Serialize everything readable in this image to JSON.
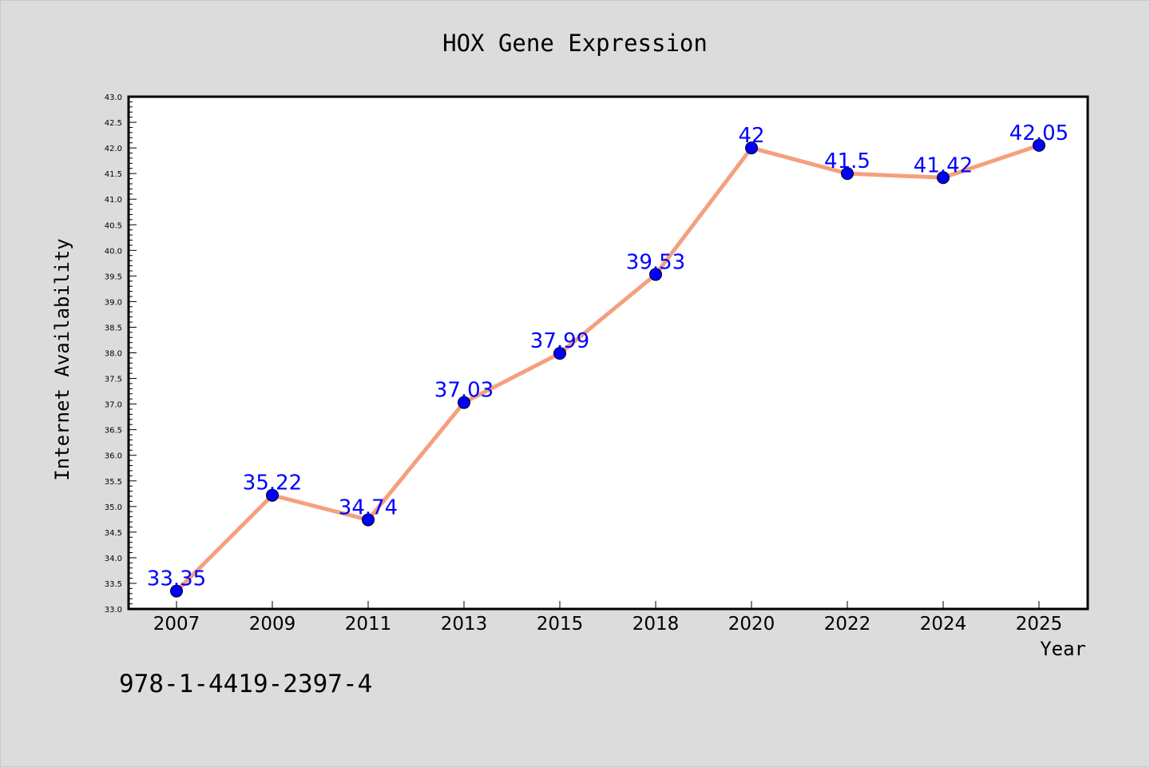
{
  "chart_data": {
    "type": "line",
    "title": "HOX Gene Expression",
    "xlabel": "Year",
    "ylabel": "Internet Availability",
    "categories": [
      "2007",
      "2009",
      "2011",
      "2013",
      "2015",
      "2018",
      "2020",
      "2022",
      "2024",
      "2025"
    ],
    "series": [
      {
        "values": [
          33.35,
          35.22,
          34.74,
          37.03,
          37.99,
          39.53,
          42,
          41.5,
          41.42,
          42.05
        ],
        "line_color": "#f4a07e",
        "marker_color": "#0000ff"
      }
    ],
    "data_labels": [
      "33.35",
      "35.22",
      "34.74",
      "37.03",
      "37.99",
      "39.53",
      "42",
      "41.5",
      "41.42",
      "42.05"
    ],
    "ylim": [
      33.0,
      43.0
    ],
    "y_tick_labels": [
      "33.0",
      "33.5",
      "34.0",
      "34.5",
      "35.0",
      "35.5",
      "36.0",
      "36.5",
      "37.0",
      "37.5",
      "38.0",
      "38.5",
      "39.0",
      "39.5",
      "40.0",
      "40.5",
      "41.0",
      "41.5",
      "42.0",
      "42.5",
      "43.0"
    ],
    "grid": false,
    "legend": "none",
    "label_color": "#0000ff",
    "background_color": "#dcdcdc",
    "plot_background_color": "#ffffff"
  },
  "footer": {
    "isbn": "978-1-4419-2397-4"
  }
}
